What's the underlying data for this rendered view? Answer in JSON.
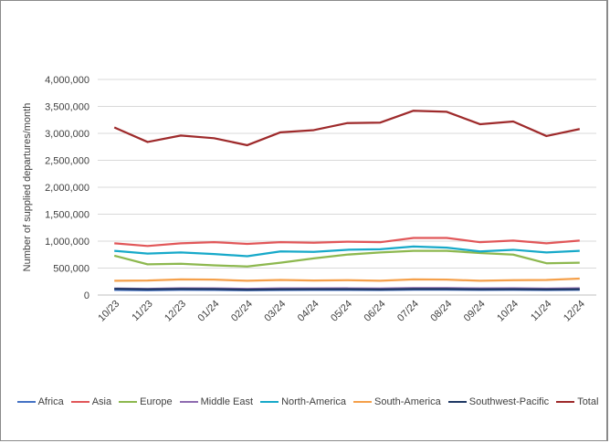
{
  "chart_data": {
    "type": "line",
    "title": "",
    "xlabel": "",
    "ylabel": "Number of supplied departures/month",
    "categories": [
      "10/23",
      "11/23",
      "12/23",
      "01/24",
      "02/24",
      "03/24",
      "04/24",
      "05/24",
      "06/24",
      "07/24",
      "08/24",
      "09/24",
      "10/24",
      "11/24",
      "12/24"
    ],
    "y_ticks": [
      "0",
      "500,000",
      "1,000,000",
      "1,500,000",
      "2,000,000",
      "2,500,000",
      "3,000,000",
      "3,500,000",
      "4,000,000"
    ],
    "ylim": [
      0,
      4000000
    ],
    "grid": "horizontal",
    "legend_position": "bottom",
    "series": [
      {
        "name": "Africa",
        "color": "#4472C4",
        "values": [
          95000,
          90000,
          97000,
          95000,
          88000,
          94000,
          95000,
          96000,
          93000,
          100000,
          100000,
          95000,
          97000,
          93000,
          97000
        ]
      },
      {
        "name": "Asia",
        "color": "#E15759",
        "values": [
          960000,
          910000,
          960000,
          980000,
          950000,
          980000,
          970000,
          990000,
          980000,
          1060000,
          1060000,
          980000,
          1010000,
          960000,
          1010000
        ]
      },
      {
        "name": "Europe",
        "color": "#8DB84F",
        "values": [
          730000,
          570000,
          580000,
          550000,
          530000,
          600000,
          680000,
          750000,
          790000,
          820000,
          820000,
          780000,
          750000,
          590000,
          600000
        ]
      },
      {
        "name": "Middle East",
        "color": "#8E6BB0",
        "values": [
          120000,
          115000,
          125000,
          122000,
          115000,
          122000,
          122000,
          124000,
          120000,
          130000,
          130000,
          122000,
          124000,
          118000,
          125000
        ]
      },
      {
        "name": "North-America",
        "color": "#17A9C9",
        "values": [
          820000,
          770000,
          790000,
          760000,
          720000,
          810000,
          800000,
          840000,
          850000,
          900000,
          880000,
          810000,
          840000,
          790000,
          820000
        ]
      },
      {
        "name": "South-America",
        "color": "#F5A04A",
        "values": [
          265000,
          270000,
          290000,
          285000,
          265000,
          280000,
          270000,
          275000,
          265000,
          290000,
          285000,
          265000,
          275000,
          280000,
          305000
        ]
      },
      {
        "name": "Southwest-Pacific",
        "color": "#1F3864",
        "values": [
          115000,
          105000,
          112000,
          110000,
          100000,
          106000,
          108000,
          108000,
          103000,
          113000,
          112000,
          106000,
          108000,
          104000,
          108000
        ]
      },
      {
        "name": "Total",
        "color": "#9E2A2B",
        "values": [
          3110000,
          2840000,
          2960000,
          2910000,
          2780000,
          3020000,
          3060000,
          3190000,
          3200000,
          3420000,
          3400000,
          3170000,
          3220000,
          2950000,
          3080000
        ]
      }
    ]
  }
}
